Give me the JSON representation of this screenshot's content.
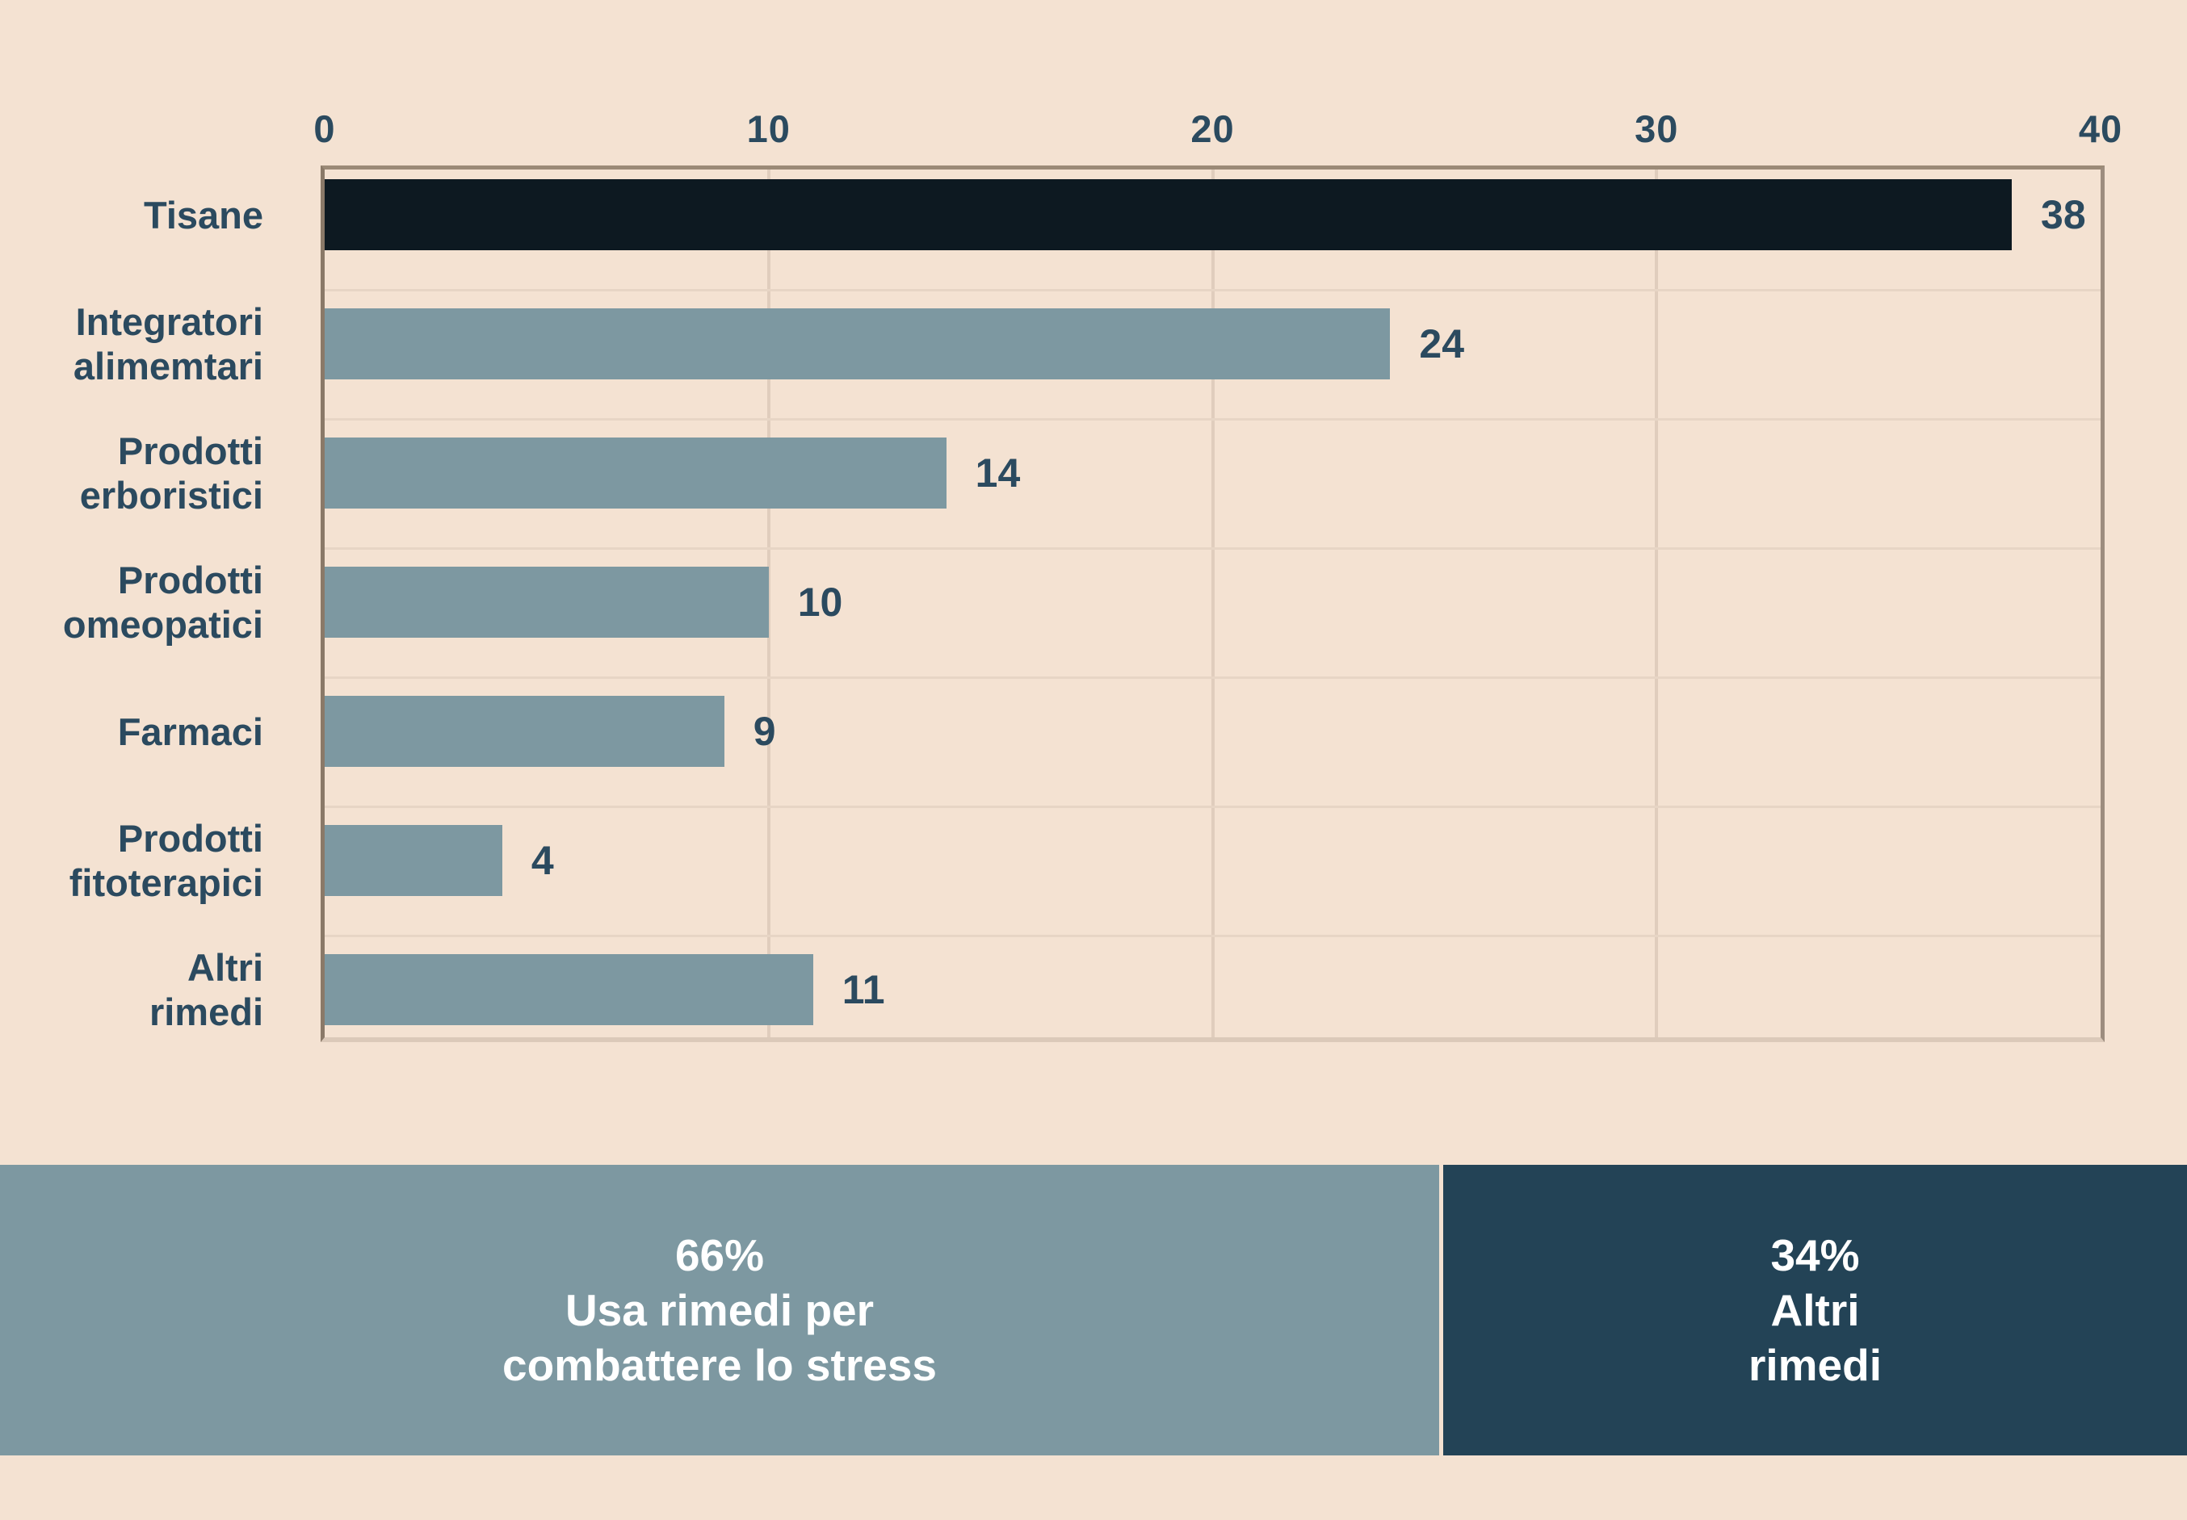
{
  "chart_data": {
    "type": "bar",
    "orientation": "horizontal",
    "categories": [
      "Tisane",
      "Integratori\nalimemtari",
      "Prodotti\nerboristici",
      "Prodotti\nomeopatici",
      "Farmaci",
      "Prodotti\nfitoterapici",
      "Altri\nrimedi"
    ],
    "values": [
      38,
      24,
      14,
      10,
      9,
      4,
      11
    ],
    "x_ticks": [
      0,
      10,
      20,
      30,
      40
    ],
    "xlim": [
      0,
      40
    ],
    "grid": true,
    "highlight_index": 0,
    "title": "",
    "xlabel": "",
    "ylabel": ""
  },
  "banner": {
    "left": {
      "text": "66%\nUsa rimedi per\ncombattere lo stress",
      "percent": "66%"
    },
    "right": {
      "text": "34%\nAltri\nrimedi",
      "percent": "34%"
    }
  },
  "colors": {
    "background": "#f4e2d2",
    "bar": "#7d98a1",
    "bar_highlight": "#0d1921",
    "text": "#2b4a5f",
    "gridline": "#e0cdbd",
    "banner_left_bg": "#7d98a1",
    "banner_right_bg": "#234356",
    "banner_text": "#ffffff"
  }
}
